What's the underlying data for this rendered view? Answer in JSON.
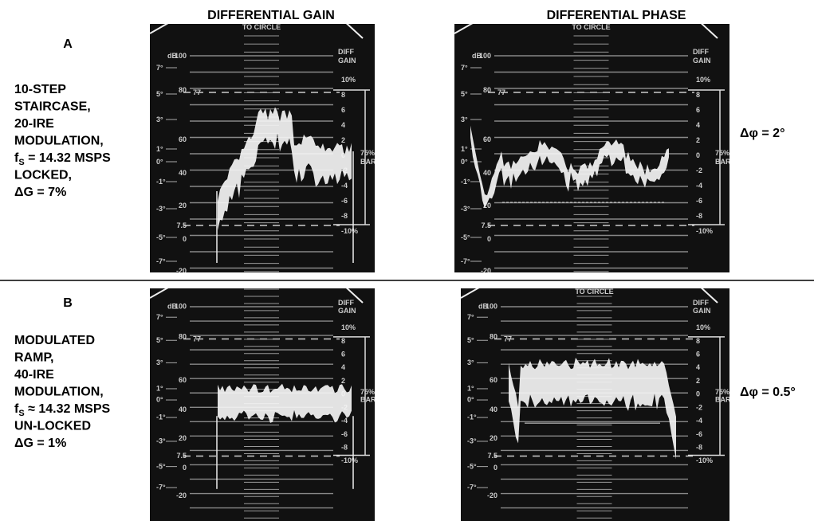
{
  "headers": [
    "DIFFERENTIAL GAIN",
    "DIFFERENTIAL PHASE"
  ],
  "rows": [
    {
      "label": "A",
      "lines": [
        "10-STEP",
        "STAIRCASE,",
        "20-IRE",
        "MODULATION,",
        {
          "symbol": "f",
          "subscript": "S",
          "rest": " = 14.32 MSPS"
        },
        "LOCKED,",
        "ΔG = 7%"
      ],
      "delta_phase": "Δφ = 2°"
    },
    {
      "label": "B",
      "lines": [
        "MODULATED",
        "RAMP,",
        "40-IRE",
        "MODULATION,",
        {
          "symbol": "f",
          "subscript": "S",
          "rest": " ≈ 14.32 MSPS"
        },
        "UN-LOCKED",
        "ΔG = 1%"
      ],
      "delta_phase": "Δφ = 0.5°"
    }
  ],
  "graticule": {
    "db_unit": "dB",
    "db": [
      "7°",
      "5°",
      "3°",
      "1°",
      "0°",
      "-1°",
      "-3°",
      "-5°",
      "-7°"
    ],
    "ire": [
      "100",
      "80",
      "60",
      "40",
      "20",
      "7.5",
      "0",
      "-20"
    ],
    "ref": "77",
    "diff_gain": [
      "DIFF",
      "GAIN"
    ],
    "gain": [
      "10%",
      "8",
      "6",
      "4",
      "2",
      "0",
      "-2",
      "-4",
      "-6",
      "-8",
      "-10%"
    ],
    "bars": [
      "75%",
      "BARS"
    ],
    "circle": "TO CIRCLE"
  }
}
